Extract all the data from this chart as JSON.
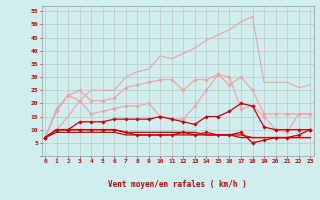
{
  "background_color": "#d0eef0",
  "grid_color": "#bbbbbb",
  "xlabel": "Vent moyen/en rafales ( km/h )",
  "xlabel_color": "#cc0000",
  "ylabel_ticks": [
    0,
    5,
    10,
    15,
    20,
    25,
    30,
    35,
    40,
    45,
    50,
    55
  ],
  "x_values": [
    0,
    1,
    2,
    3,
    4,
    5,
    6,
    7,
    8,
    9,
    10,
    11,
    12,
    13,
    14,
    15,
    16,
    17,
    18,
    19,
    20,
    21,
    22,
    23
  ],
  "line_top_smooth": [
    7,
    10,
    15,
    21,
    25,
    25,
    25,
    30,
    32,
    33,
    38,
    37,
    39,
    41,
    44,
    46,
    48,
    51,
    53,
    28,
    28,
    28,
    26,
    27
  ],
  "line_mid_upper": [
    7,
    17,
    23,
    25,
    21,
    21,
    22,
    26,
    27,
    28,
    29,
    29,
    25,
    29,
    29,
    31,
    27,
    30,
    25,
    16,
    16,
    16,
    16,
    16
  ],
  "line_mid_lower": [
    7,
    18,
    23,
    21,
    16,
    17,
    18,
    19,
    19,
    20,
    15,
    14,
    14,
    19,
    25,
    31,
    30,
    18,
    19,
    15,
    10,
    9,
    16,
    16
  ],
  "line_dark1": [
    7,
    10,
    10,
    13,
    13,
    13,
    14,
    14,
    14,
    14,
    15,
    14,
    13,
    12,
    15,
    15,
    17,
    20,
    19,
    11,
    10,
    10,
    10,
    10
  ],
  "line_dark2": [
    7,
    10,
    10,
    10,
    10,
    10,
    10,
    9,
    8,
    8,
    8,
    8,
    9,
    8,
    9,
    8,
    8,
    9,
    5,
    6,
    7,
    7,
    8,
    10
  ],
  "line_dark3": [
    7,
    9,
    9,
    9,
    9,
    9,
    9,
    8,
    8,
    8,
    8,
    8,
    8,
    8,
    8,
    8,
    8,
    7,
    7,
    7,
    7,
    7,
    7,
    7
  ],
  "line_dark4": [
    7,
    10,
    10,
    10,
    10,
    10,
    10,
    9,
    9,
    9,
    9,
    9,
    9,
    9,
    8,
    8,
    8,
    8,
    7,
    7,
    7,
    7,
    7,
    7
  ],
  "color_light": "#f0a0a0",
  "color_dark": "#cc0000",
  "wind_arrows": [
    "↑",
    "↗",
    "↗",
    "↗",
    "↗",
    "↗",
    "↗",
    "↗",
    "↑",
    "↗",
    "↗",
    "↗",
    "↗",
    "↗",
    "↗",
    "↑",
    "↖",
    "←",
    "↖",
    "↖",
    "↖",
    "↖",
    "↖",
    "↖"
  ]
}
